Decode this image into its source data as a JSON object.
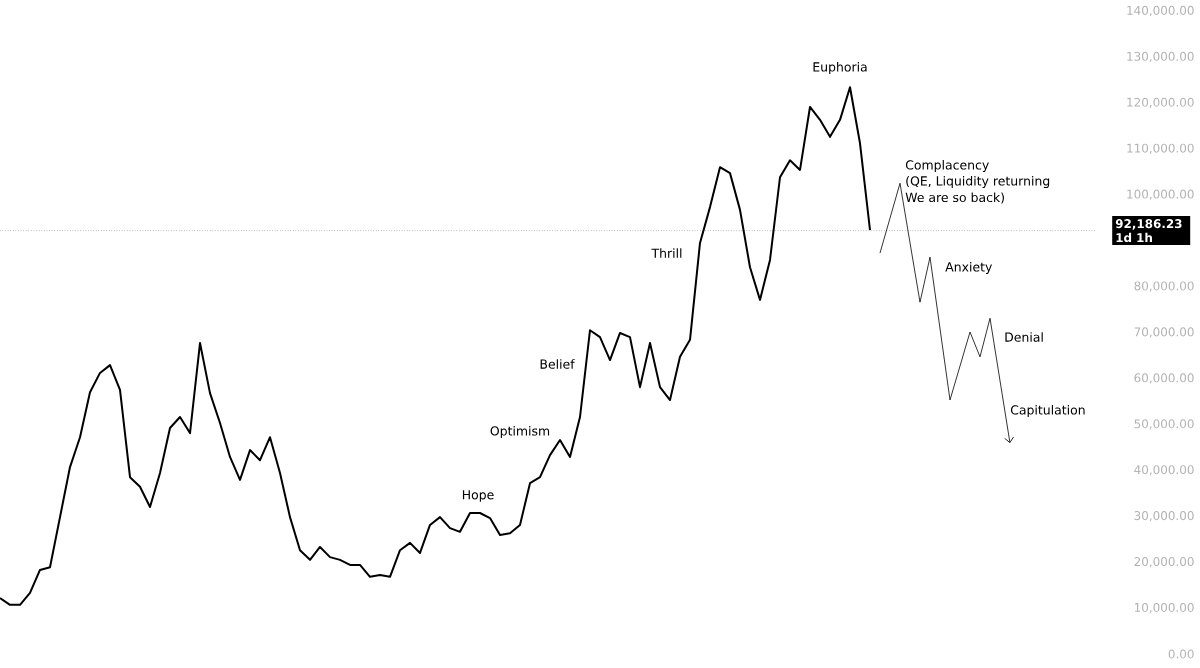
{
  "chart_data": {
    "type": "line",
    "categories": [
      null,
      null,
      null,
      null,
      null,
      null,
      null,
      null,
      null,
      null,
      null,
      null,
      null,
      null,
      null,
      null,
      null,
      null,
      null,
      null,
      null,
      null,
      null,
      null,
      null,
      null,
      null,
      null,
      null,
      null,
      null,
      null,
      null,
      null,
      null,
      null,
      null,
      null,
      null,
      null,
      null,
      null,
      null,
      null,
      null,
      null,
      null,
      null,
      null,
      null,
      null,
      null,
      null,
      null,
      null,
      null,
      null,
      null,
      null,
      null,
      null,
      null,
      null,
      null,
      null,
      null,
      null,
      null,
      null,
      null,
      null,
      null,
      null,
      null,
      null,
      null,
      null,
      null,
      null,
      null,
      null,
      null,
      null,
      null,
      null,
      null,
      null,
      null,
      null,
      null,
      null,
      null,
      null,
      null,
      null,
      null,
      null,
      null,
      null,
      null,
      null,
      null
    ],
    "series": [
      {
        "color": "#000000",
        "values": [
          12200,
          10700,
          10700,
          13300,
          18300,
          18900,
          29800,
          40700,
          47200,
          57000,
          61200,
          62900,
          57500,
          38500,
          36400,
          32000,
          39400,
          49200,
          51600,
          48100,
          67700,
          56800,
          50300,
          42900,
          37900,
          44400,
          42200,
          47200,
          39400,
          29800,
          22600,
          20500,
          23300,
          21100,
          20500,
          19400,
          19400,
          16800,
          17200,
          16800,
          22600,
          24200,
          22000,
          28100,
          29800,
          27400,
          26600,
          30700,
          30700,
          29600,
          25900,
          26300,
          28100,
          37200,
          38500,
          43300,
          46600,
          42900,
          51600,
          70500,
          69000,
          64000,
          69900,
          69000,
          58100,
          67700,
          58100,
          55300,
          64700,
          68400,
          89500,
          97300,
          106000,
          104700,
          96700,
          84200,
          77100,
          85800,
          103800,
          107500,
          105400,
          119100,
          116300,
          112600,
          116300,
          123400,
          111200,
          92300,
          null,
          null,
          null,
          null,
          null,
          null,
          null,
          null,
          null,
          null,
          null,
          null,
          null,
          null
        ]
      },
      {
        "color": "#000000",
        "values": [
          null,
          null,
          null,
          null,
          null,
          null,
          null,
          null,
          null,
          null,
          null,
          null,
          null,
          null,
          null,
          null,
          null,
          null,
          null,
          null,
          null,
          null,
          null,
          null,
          null,
          null,
          null,
          null,
          null,
          null,
          null,
          null,
          null,
          null,
          null,
          null,
          null,
          null,
          null,
          null,
          null,
          null,
          null,
          null,
          null,
          null,
          null,
          null,
          null,
          null,
          null,
          null,
          null,
          null,
          null,
          null,
          null,
          null,
          null,
          null,
          null,
          null,
          null,
          null,
          null,
          null,
          null,
          null,
          null,
          null,
          null,
          null,
          null,
          null,
          null,
          null,
          null,
          null,
          null,
          null,
          null,
          null,
          null,
          null,
          null,
          null,
          null,
          null,
          87300,
          null,
          102500,
          null,
          76600,
          86400,
          null,
          55300,
          null,
          70100,
          64700,
          73100,
          null,
          45900
        ]
      }
    ],
    "ylim": [
      0,
      140000
    ],
    "yticks": [
      {
        "value": 0,
        "label": "0.00"
      },
      {
        "value": 10000,
        "label": "10,000.00"
      },
      {
        "value": 20000,
        "label": "20,000.00"
      },
      {
        "value": 30000,
        "label": "30,000.00"
      },
      {
        "value": 40000,
        "label": "40,000.00"
      },
      {
        "value": 50000,
        "label": "50,000.00"
      },
      {
        "value": 60000,
        "label": "60,000.00"
      },
      {
        "value": 70000,
        "label": "70,000.00"
      },
      {
        "value": 80000,
        "label": "80,000.00"
      },
      {
        "value": 100000,
        "label": "100,000.00"
      },
      {
        "value": 110000,
        "label": "110,000.00"
      },
      {
        "value": 120000,
        "label": "120,000.00"
      },
      {
        "value": 130000,
        "label": "130,000.00"
      },
      {
        "value": 140000,
        "label": "140,000.00"
      }
    ],
    "tick_labels": "y",
    "ref_lines": [
      {
        "axis": "y",
        "value": 92186.23,
        "label": "92,186.23 1d 1h",
        "line_style": "dotted",
        "color": "#555555"
      }
    ],
    "annotations": [
      "Euphoria",
      "Complacency",
      "(QE, Liquidity returning",
      "We are so back)",
      "Thrill",
      "Belief",
      "Optimism",
      "Hope",
      "Anxiety",
      "Denial",
      "Capitulation"
    ],
    "grid": false,
    "marker": "none",
    "line_style": "solid"
  }
}
